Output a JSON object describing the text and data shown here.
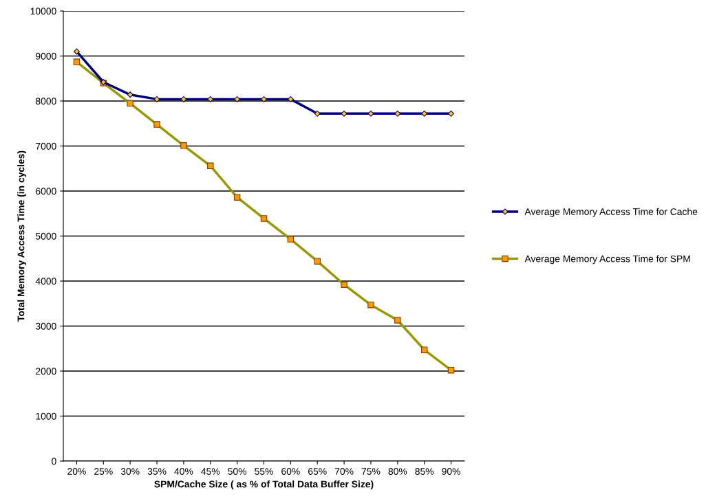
{
  "chart_data": {
    "type": "line",
    "xlabel": "SPM/Cache Size ( as % of Total Data Buffer Size)",
    "ylabel": "Total Memory Access Time (in cycles)",
    "categories": [
      "20%",
      "25%",
      "30%",
      "35%",
      "40%",
      "45%",
      "50%",
      "55%",
      "60%",
      "65%",
      "70%",
      "75%",
      "80%",
      "85%",
      "90%"
    ],
    "series": [
      {
        "name": "Average Memory Access Time for Cache",
        "color": "#000080",
        "marker": "diamond",
        "values": [
          9100,
          8420,
          8140,
          8040,
          8040,
          8040,
          8040,
          8040,
          8040,
          7720,
          7720,
          7720,
          7720,
          7720,
          7720
        ]
      },
      {
        "name": "Average Memory Access Time for SPM",
        "color": "#999900",
        "marker": "square",
        "values": [
          8870,
          8400,
          7950,
          7480,
          7010,
          6560,
          5860,
          5390,
          4930,
          4440,
          3920,
          3470,
          3130,
          2470,
          2020
        ]
      }
    ],
    "ylim": [
      0,
      10000
    ],
    "yticks": [
      0,
      1000,
      2000,
      3000,
      4000,
      5000,
      6000,
      7000,
      8000,
      9000,
      10000
    ],
    "grid": "y",
    "legend": "right"
  }
}
